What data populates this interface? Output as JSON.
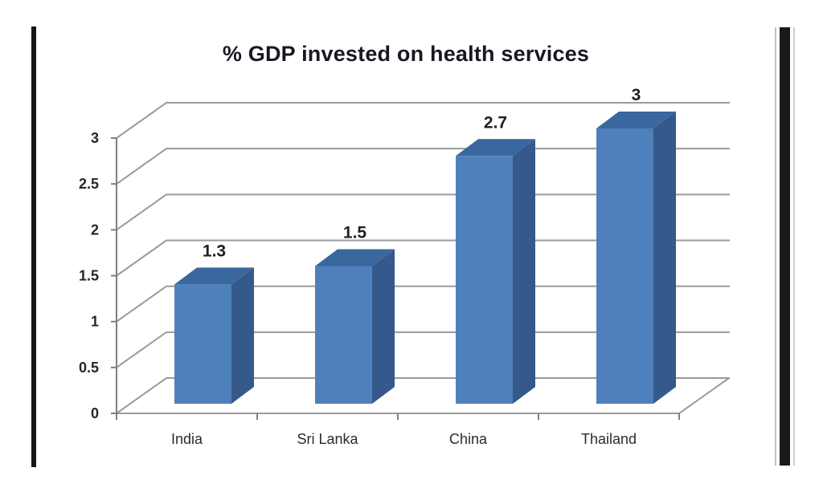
{
  "chart_data": {
    "type": "bar",
    "style": "3d-column",
    "title": "% GDP invested on health services",
    "categories": [
      "India",
      "Sri Lanka",
      "China",
      "Thailand"
    ],
    "values": [
      1.3,
      1.5,
      2.7,
      3
    ],
    "value_labels": [
      "1.3",
      "1.5",
      "2.7",
      "3"
    ],
    "xlabel": "",
    "ylabel": "",
    "ylim": [
      0,
      3
    ],
    "ytick_step": 0.5,
    "ytick_labels": [
      "0",
      "0.5",
      "1",
      "1.5",
      "2",
      "2.5",
      "3"
    ],
    "grid": true,
    "legend": false,
    "colors": {
      "bar_front": "#4e80bc",
      "bar_top": "#3a679e",
      "bar_side": "#35598a",
      "gridline": "#9a9a9a",
      "axis": "#7f7f7f",
      "tick": "#7f7f7f"
    }
  }
}
